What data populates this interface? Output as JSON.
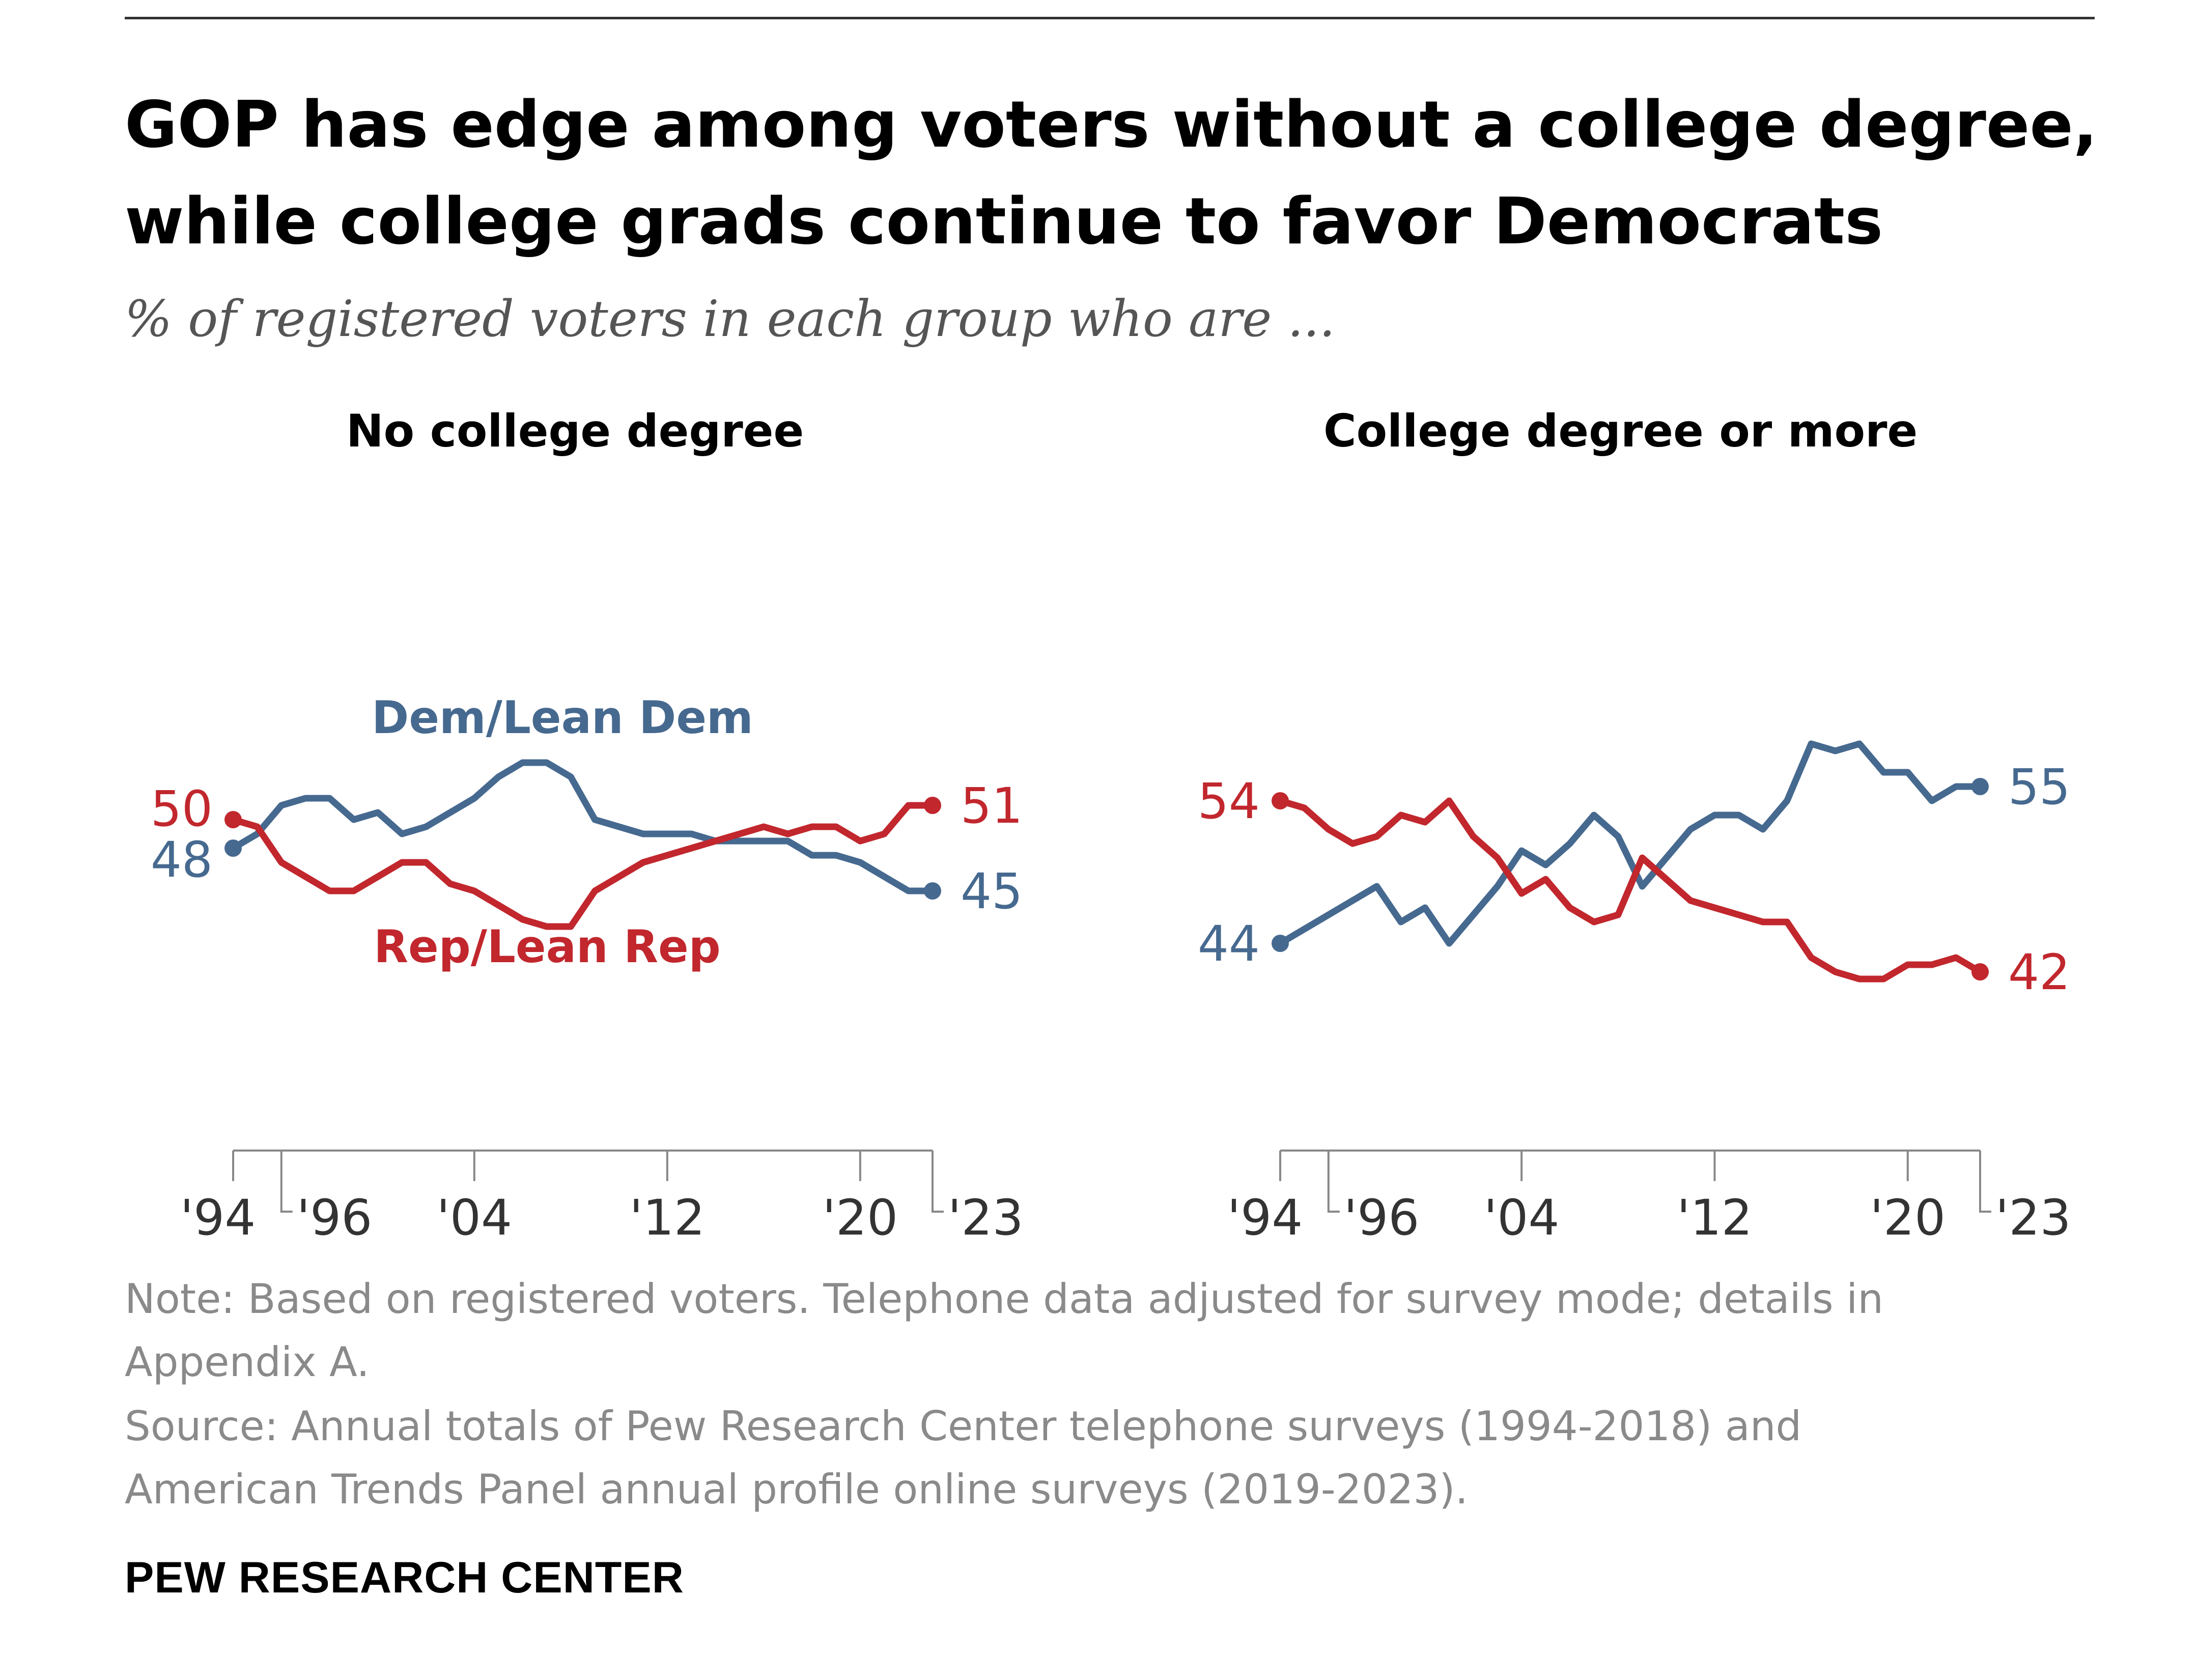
{
  "title": {
    "line1": "GOP has edge among voters without a college degree,",
    "line2": "while college grads continue to favor Democrats"
  },
  "subtitle": "% of registered voters in each group who are ...",
  "note": "Note: Based on registered voters. Telephone data adjusted for survey mode; details in Appendix A.",
  "source": "Source: Annual totals of Pew Research Center telephone surveys (1994-2018) and American Trends Panel annual profile online surveys (2019-2023).",
  "brand": "PEW RESEARCH CENTER",
  "colors": {
    "dem": "#46698f",
    "rep": "#c1272d",
    "axis": "#888888",
    "tick_label": "#333333"
  },
  "chart_data": [
    {
      "type": "line",
      "title": "No college degree",
      "x": [
        1994,
        1995,
        1996,
        1997,
        1998,
        1999,
        2000,
        2001,
        2002,
        2003,
        2004,
        2005,
        2006,
        2007,
        2008,
        2009,
        2010,
        2011,
        2012,
        2013,
        2014,
        2015,
        2016,
        2017,
        2018,
        2019,
        2020,
        2021,
        2022,
        2023
      ],
      "x_tick_labels": [
        "'94",
        "'96",
        "'04",
        "'12",
        "'20",
        "'23"
      ],
      "x_tick_values": [
        1994,
        1996,
        2004,
        2012,
        2020,
        2023
      ],
      "series": [
        {
          "name": "Dem/Lean Dem",
          "color_key": "dem",
          "values": [
            48,
            49,
            51,
            51.5,
            51.5,
            50,
            50.5,
            49,
            49.5,
            50.5,
            51.5,
            53,
            54,
            54,
            53,
            50,
            49.5,
            49,
            49,
            49,
            48.5,
            48.5,
            48.5,
            48.5,
            47.5,
            47.5,
            47,
            46,
            45,
            45
          ]
        },
        {
          "name": "Rep/Lean Rep",
          "color_key": "rep",
          "values": [
            50,
            49.5,
            47,
            46,
            45,
            45,
            46,
            47,
            47,
            45.5,
            45,
            44,
            43,
            42.5,
            42.5,
            45,
            46,
            47,
            47.5,
            48,
            48.5,
            49,
            49.5,
            49,
            49.5,
            49.5,
            48.5,
            49,
            51,
            51
          ]
        }
      ],
      "first_labels": {
        "dem": "48",
        "rep": "50"
      },
      "last_labels": {
        "dem": "45",
        "rep": "51"
      }
    },
    {
      "type": "line",
      "title": "College degree or more",
      "x": [
        1994,
        1995,
        1996,
        1997,
        1998,
        1999,
        2000,
        2001,
        2002,
        2003,
        2004,
        2005,
        2006,
        2007,
        2008,
        2009,
        2010,
        2011,
        2012,
        2013,
        2014,
        2015,
        2016,
        2017,
        2018,
        2019,
        2020,
        2021,
        2022,
        2023
      ],
      "x_tick_labels": [
        "'94",
        "'96",
        "'04",
        "'12",
        "'20",
        "'23"
      ],
      "x_tick_values": [
        1994,
        1996,
        2004,
        2012,
        2020,
        2023
      ],
      "series": [
        {
          "name": "",
          "color_key": "dem",
          "values": [
            44,
            45,
            46,
            47,
            48,
            45.5,
            46.5,
            44,
            46,
            48,
            50.5,
            49.5,
            51,
            53,
            51.5,
            48,
            50,
            52,
            53,
            53,
            52,
            54,
            58,
            57.5,
            58,
            56,
            56,
            54,
            55,
            55
          ]
        },
        {
          "name": "",
          "color_key": "rep",
          "values": [
            54,
            53.5,
            52,
            51,
            51.5,
            53,
            52.5,
            54,
            51.5,
            50,
            47.5,
            48.5,
            46.5,
            45.5,
            46,
            50,
            48.5,
            47,
            46.5,
            46,
            45.5,
            45.5,
            43,
            42,
            41.5,
            41.5,
            42.5,
            42.5,
            43,
            42
          ]
        }
      ],
      "first_labels": {
        "dem": "44",
        "rep": "54"
      },
      "last_labels": {
        "dem": "55",
        "rep": "42"
      }
    }
  ]
}
